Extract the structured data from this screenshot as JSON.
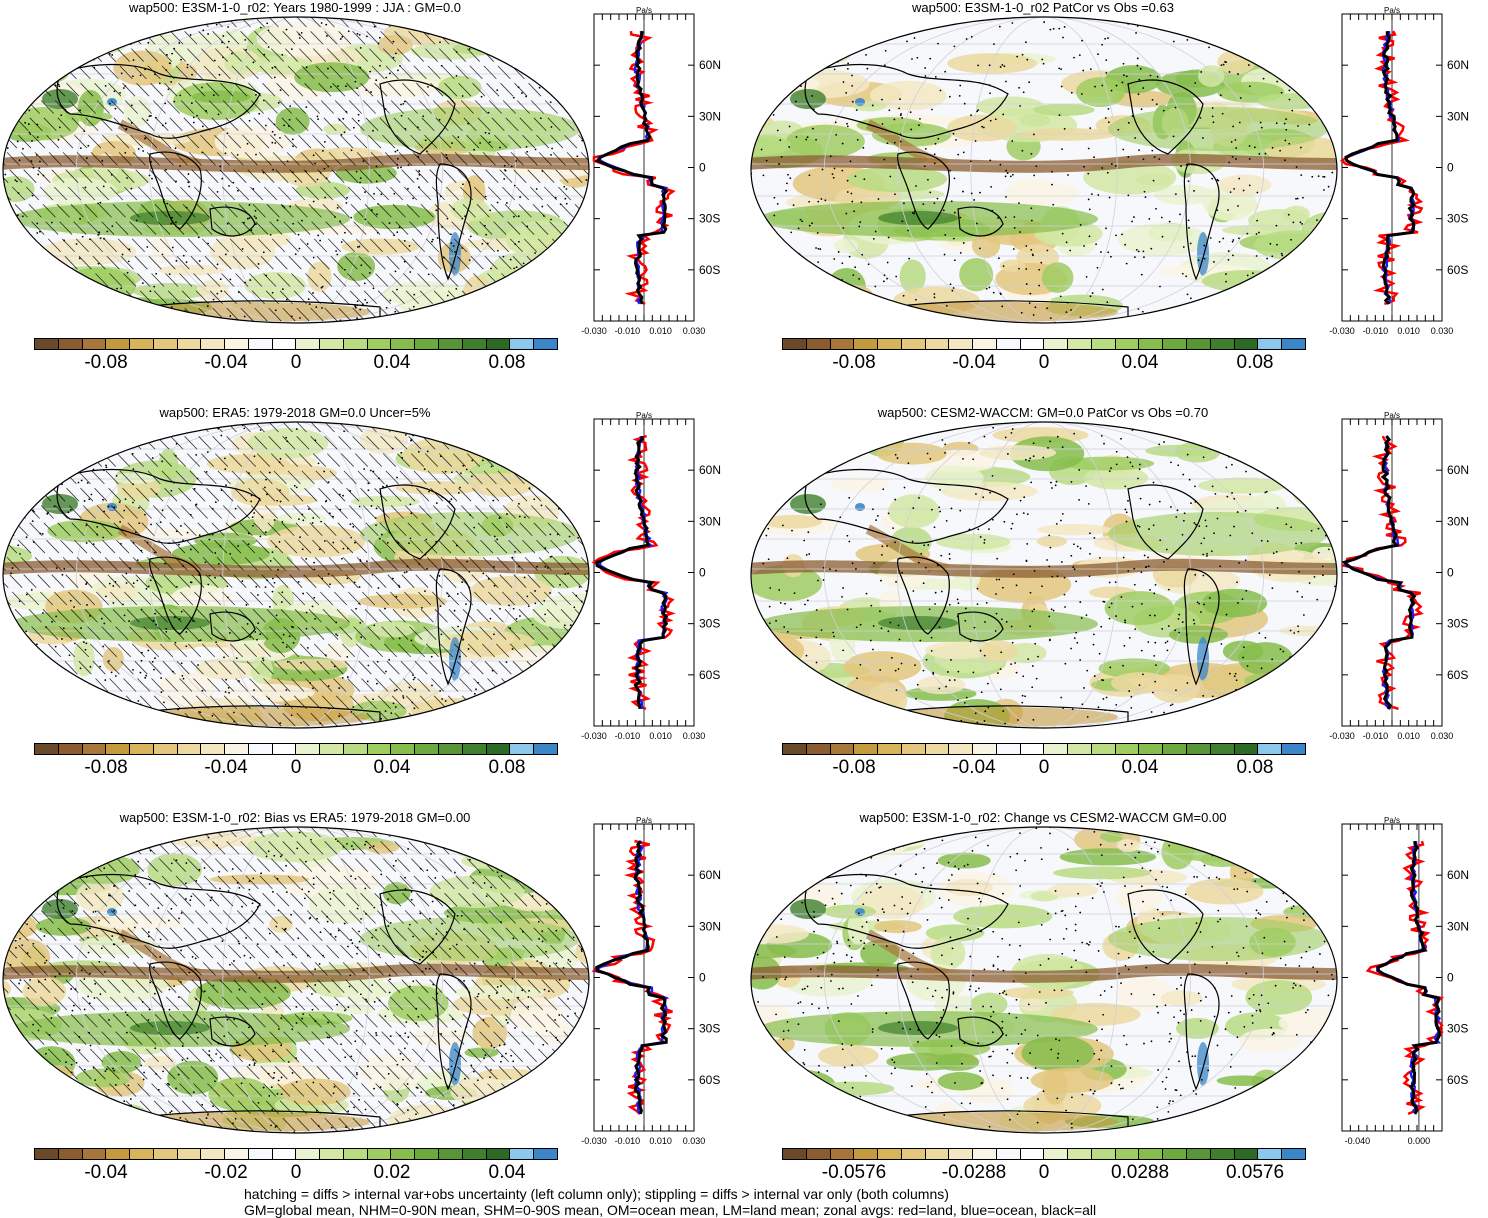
{
  "panels": [
    {
      "title": "wap500: E3SM-1-0_r02: Years 1980-1999 : JJA : GM=0.0",
      "colorbar_labels": [
        "-0.08",
        "-0.04",
        "0",
        "0.04",
        "0.08"
      ],
      "zonal_ticks": [
        "-0.030",
        "-0.010",
        "0.010",
        "0.030"
      ],
      "zonal_lat": [
        "60N",
        "30N",
        "0",
        "30S",
        "60S"
      ],
      "unit": "Pa/s",
      "hatching": true
    },
    {
      "title": "wap500: E3SM-1-0_r02 PatCor vs Obs =0.63",
      "colorbar_labels": [
        "-0.08",
        "-0.04",
        "0",
        "0.04",
        "0.08"
      ],
      "zonal_ticks": [
        "-0.030",
        "-0.010",
        "0.010",
        "0.030"
      ],
      "zonal_lat": [
        "60N",
        "30N",
        "0",
        "30S",
        "60S"
      ],
      "unit": "Pa/s",
      "hatching": false
    },
    {
      "title": "wap500: ERA5: 1979-2018 GM=0.0 Uncer=5%",
      "colorbar_labels": [
        "-0.08",
        "-0.04",
        "0",
        "0.04",
        "0.08"
      ],
      "zonal_ticks": [
        "-0.030",
        "-0.010",
        "0.010",
        "0.030"
      ],
      "zonal_lat": [
        "60N",
        "30N",
        "0",
        "30S",
        "60S"
      ],
      "unit": "Pa/s",
      "hatching": true
    },
    {
      "title": "wap500: CESM2-WACCM: GM=0.0 PatCor vs Obs =0.70",
      "colorbar_labels": [
        "-0.08",
        "-0.04",
        "0",
        "0.04",
        "0.08"
      ],
      "zonal_ticks": [
        "-0.030",
        "-0.010",
        "0.010",
        "0.030"
      ],
      "zonal_lat": [
        "60N",
        "30N",
        "0",
        "30S",
        "60S"
      ],
      "unit": "Pa/s",
      "hatching": false
    },
    {
      "title": "wap500: E3SM-1-0_r02: Bias vs ERA5: 1979-2018 GM=0.00",
      "colorbar_labels": [
        "-0.04",
        "-0.02",
        "0",
        "0.02",
        "0.04"
      ],
      "zonal_ticks": [
        "-0.030",
        "-0.010",
        "0.010",
        "0.030"
      ],
      "zonal_lat": [
        "60N",
        "30N",
        "0",
        "30S",
        "60S"
      ],
      "unit": "Pa/s",
      "hatching": true
    },
    {
      "title": "wap500: E3SM-1-0_r02: Change vs CESM2-WACCM GM=0.00",
      "colorbar_labels": [
        "-0.0576",
        "-0.0288",
        "0",
        "0.0288",
        "0.0576"
      ],
      "zonal_ticks": [
        "-0.040",
        "0.000"
      ],
      "zonal_lat": [
        "60N",
        "30N",
        "0",
        "30S",
        "60S"
      ],
      "unit": "Pa/s",
      "hatching": false
    }
  ],
  "colorbar_colors": [
    "#6b4a2b",
    "#8a5c30",
    "#a8753a",
    "#c49a3e",
    "#d7b35a",
    "#e3c77e",
    "#ecd9a0",
    "#f3e7c3",
    "#faf4e4",
    "#f7f9fc",
    "#ffffff",
    "#eaf3d0",
    "#d2e8a4",
    "#b9dc82",
    "#9fcd62",
    "#86bd4c",
    "#6da93f",
    "#579536",
    "#3f7f2d",
    "#2c6a25",
    "#8cc8ec",
    "#3a86c8"
  ],
  "footer": [
    "hatching = diffs > internal var+obs uncertainty (left column only); stippling = diffs > internal var only (both columns)",
    "GM=global mean, NHM=0-90N mean, SHM=0-90S mean, OM=ocean mean, LM=land mean; zonal avgs: red=land, blue=ocean, black=all"
  ],
  "chart_data": [
    {
      "type": "heatmap",
      "title": "wap500: E3SM-1-0_r02: Years 1980-1999 : JJA : GM=0.0",
      "units": "Pa/s",
      "colorbar_range": [
        -0.1,
        0.1
      ],
      "zonal_xlim": [
        -0.03,
        0.03
      ],
      "zonal_series": [
        "land",
        "ocean",
        "all"
      ]
    },
    {
      "type": "heatmap",
      "title": "wap500: E3SM-1-0_r02 PatCor vs Obs =0.63",
      "units": "Pa/s",
      "colorbar_range": [
        -0.1,
        0.1
      ],
      "zonal_xlim": [
        -0.03,
        0.03
      ],
      "zonal_series": [
        "land",
        "ocean",
        "all"
      ]
    },
    {
      "type": "heatmap",
      "title": "wap500: ERA5: 1979-2018 GM=0.0 Uncer=5%",
      "units": "Pa/s",
      "colorbar_range": [
        -0.1,
        0.1
      ],
      "zonal_xlim": [
        -0.03,
        0.03
      ],
      "zonal_series": [
        "land",
        "ocean",
        "all"
      ]
    },
    {
      "type": "heatmap",
      "title": "wap500: CESM2-WACCM: GM=0.0 PatCor vs Obs =0.70",
      "units": "Pa/s",
      "colorbar_range": [
        -0.1,
        0.1
      ],
      "zonal_xlim": [
        -0.03,
        0.03
      ],
      "zonal_series": [
        "land",
        "ocean",
        "all"
      ]
    },
    {
      "type": "heatmap",
      "title": "wap500: E3SM-1-0_r02: Bias vs ERA5: 1979-2018 GM=0.00",
      "units": "Pa/s",
      "colorbar_range": [
        -0.05,
        0.05
      ],
      "zonal_xlim": [
        -0.03,
        0.03
      ],
      "zonal_series": [
        "land",
        "ocean",
        "all"
      ]
    },
    {
      "type": "heatmap",
      "title": "wap500: E3SM-1-0_r02: Change vs CESM2-WACCM GM=0.00",
      "units": "Pa/s",
      "colorbar_range": [
        -0.072,
        0.072
      ],
      "zonal_xlim": [
        -0.05,
        0.015
      ],
      "zonal_series": [
        "land",
        "ocean",
        "all"
      ]
    }
  ]
}
